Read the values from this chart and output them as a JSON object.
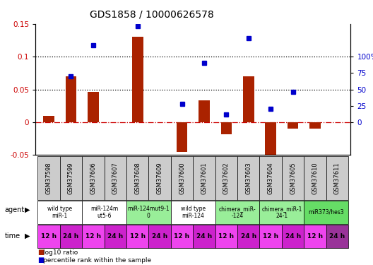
{
  "title": "GDS1858 / 10000626578",
  "samples": [
    "GSM37598",
    "GSM37599",
    "GSM37606",
    "GSM37607",
    "GSM37608",
    "GSM37609",
    "GSM37600",
    "GSM37601",
    "GSM37602",
    "GSM37603",
    "GSM37604",
    "GSM37605",
    "GSM37610",
    "GSM37611"
  ],
  "log10_ratio": [
    0.01,
    0.07,
    0.046,
    0.0,
    0.13,
    0.0,
    -0.045,
    0.033,
    -0.018,
    0.07,
    -0.05,
    -0.01,
    -0.01,
    0.0
  ],
  "percentile_rank_left": [
    null,
    0.07,
    0.117,
    null,
    0.147,
    null,
    0.028,
    0.09,
    0.012,
    0.128,
    0.02,
    0.046,
    null,
    null
  ],
  "ylim": [
    -0.05,
    0.15
  ],
  "yticks_left": [
    -0.05,
    0.0,
    0.05,
    0.1,
    0.15
  ],
  "yticks_left_labels": [
    "-0.05",
    "0",
    "0.05",
    "0.1",
    "0.15"
  ],
  "yticks_right_vals": [
    0.0,
    0.025,
    0.05,
    0.075,
    0.1
  ],
  "yticks_right_labels": [
    "0",
    "25",
    "50",
    "75",
    "100%"
  ],
  "dotted_lines": [
    0.05,
    0.1
  ],
  "bar_color": "#aa2200",
  "dot_color": "#0000cc",
  "agent_groups": [
    {
      "label": "wild type\nmiR-1",
      "start": 0,
      "end": 2,
      "color": "#ffffff"
    },
    {
      "label": "miR-124m\nut5-6",
      "start": 2,
      "end": 4,
      "color": "#ffffff"
    },
    {
      "label": "miR-124mut9-1\n0",
      "start": 4,
      "end": 6,
      "color": "#99ee99"
    },
    {
      "label": "wild type\nmiR-124",
      "start": 6,
      "end": 8,
      "color": "#ffffff"
    },
    {
      "label": "chimera_miR-\n-124",
      "start": 8,
      "end": 10,
      "color": "#99ee99"
    },
    {
      "label": "chimera_miR-1\n24-1",
      "start": 10,
      "end": 12,
      "color": "#99ee99"
    },
    {
      "label": "miR373/hes3",
      "start": 12,
      "end": 14,
      "color": "#66dd66"
    }
  ],
  "time_labels": [
    "12 h",
    "24 h",
    "12 h",
    "24 h",
    "12 h",
    "24 h",
    "12 h",
    "24 h",
    "12 h",
    "24 h",
    "12 h",
    "24 h",
    "12 h",
    "24 h"
  ],
  "time_colors": [
    "#ee44ee",
    "#cc22cc",
    "#ee44ee",
    "#cc22cc",
    "#ee44ee",
    "#cc22cc",
    "#ee44ee",
    "#cc22cc",
    "#ee44ee",
    "#cc22cc",
    "#ee44ee",
    "#cc22cc",
    "#ee44ee",
    "#993399"
  ],
  "sample_box_color": "#cccccc",
  "left_label_color": "#cc0000",
  "right_label_color": "#0000cc",
  "zero_line_color": "#cc0000",
  "border_color": "#000000"
}
